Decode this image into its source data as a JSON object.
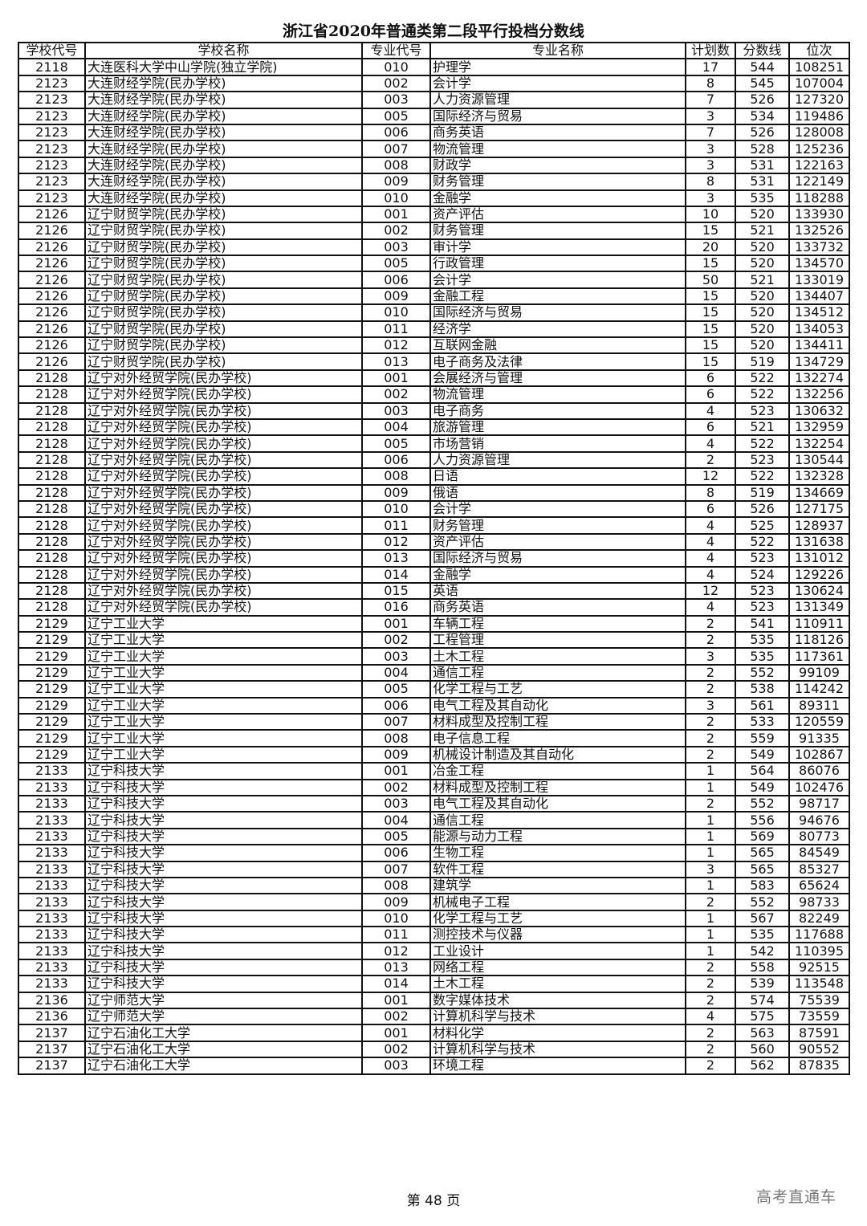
{
  "title": "浙江省2020年普通类第二段平行投档分数线",
  "headers": [
    "学校代号",
    "学校名称",
    "专业代号",
    "专业名称",
    "计划数",
    "分数线",
    "位次"
  ],
  "rows": [
    [
      "2118",
      "大连医科大学中山学院(独立学院)",
      "010",
      "护理学",
      "17",
      "544",
      "108251"
    ],
    [
      "2123",
      "大连财经学院(民办学校)",
      "002",
      "会计学",
      "8",
      "545",
      "107004"
    ],
    [
      "2123",
      "大连财经学院(民办学校)",
      "003",
      "人力资源管理",
      "7",
      "526",
      "127320"
    ],
    [
      "2123",
      "大连财经学院(民办学校)",
      "005",
      "国际经济与贸易",
      "3",
      "534",
      "119486"
    ],
    [
      "2123",
      "大连财经学院(民办学校)",
      "006",
      "商务英语",
      "7",
      "526",
      "128008"
    ],
    [
      "2123",
      "大连财经学院(民办学校)",
      "007",
      "物流管理",
      "3",
      "528",
      "125236"
    ],
    [
      "2123",
      "大连财经学院(民办学校)",
      "008",
      "财政学",
      "3",
      "531",
      "122163"
    ],
    [
      "2123",
      "大连财经学院(民办学校)",
      "009",
      "财务管理",
      "8",
      "531",
      "122149"
    ],
    [
      "2123",
      "大连财经学院(民办学校)",
      "010",
      "金融学",
      "3",
      "535",
      "118288"
    ],
    [
      "2126",
      "辽宁财贸学院(民办学校)",
      "001",
      "资产评估",
      "10",
      "520",
      "133930"
    ],
    [
      "2126",
      "辽宁财贸学院(民办学校)",
      "002",
      "财务管理",
      "15",
      "521",
      "132526"
    ],
    [
      "2126",
      "辽宁财贸学院(民办学校)",
      "003",
      "审计学",
      "20",
      "520",
      "133732"
    ],
    [
      "2126",
      "辽宁财贸学院(民办学校)",
      "005",
      "行政管理",
      "15",
      "520",
      "134570"
    ],
    [
      "2126",
      "辽宁财贸学院(民办学校)",
      "006",
      "会计学",
      "50",
      "521",
      "133019"
    ],
    [
      "2126",
      "辽宁财贸学院(民办学校)",
      "009",
      "金融工程",
      "15",
      "520",
      "134407"
    ],
    [
      "2126",
      "辽宁财贸学院(民办学校)",
      "010",
      "国际经济与贸易",
      "15",
      "520",
      "134512"
    ],
    [
      "2126",
      "辽宁财贸学院(民办学校)",
      "011",
      "经济学",
      "15",
      "520",
      "134053"
    ],
    [
      "2126",
      "辽宁财贸学院(民办学校)",
      "012",
      "互联网金融",
      "15",
      "520",
      "134411"
    ],
    [
      "2126",
      "辽宁财贸学院(民办学校)",
      "013",
      "电子商务及法律",
      "15",
      "519",
      "134729"
    ],
    [
      "2128",
      "辽宁对外经贸学院(民办学校)",
      "001",
      "会展经济与管理",
      "6",
      "522",
      "132274"
    ],
    [
      "2128",
      "辽宁对外经贸学院(民办学校)",
      "002",
      "物流管理",
      "6",
      "522",
      "132256"
    ],
    [
      "2128",
      "辽宁对外经贸学院(民办学校)",
      "003",
      "电子商务",
      "4",
      "523",
      "130632"
    ],
    [
      "2128",
      "辽宁对外经贸学院(民办学校)",
      "004",
      "旅游管理",
      "6",
      "521",
      "132959"
    ],
    [
      "2128",
      "辽宁对外经贸学院(民办学校)",
      "005",
      "市场营销",
      "4",
      "522",
      "132254"
    ],
    [
      "2128",
      "辽宁对外经贸学院(民办学校)",
      "006",
      "人力资源管理",
      "2",
      "523",
      "130544"
    ],
    [
      "2128",
      "辽宁对外经贸学院(民办学校)",
      "008",
      "日语",
      "12",
      "522",
      "132328"
    ],
    [
      "2128",
      "辽宁对外经贸学院(民办学校)",
      "009",
      "俄语",
      "8",
      "519",
      "134669"
    ],
    [
      "2128",
      "辽宁对外经贸学院(民办学校)",
      "010",
      "会计学",
      "6",
      "526",
      "127175"
    ],
    [
      "2128",
      "辽宁对外经贸学院(民办学校)",
      "011",
      "财务管理",
      "4",
      "525",
      "128937"
    ],
    [
      "2128",
      "辽宁对外经贸学院(民办学校)",
      "012",
      "资产评估",
      "4",
      "522",
      "131638"
    ],
    [
      "2128",
      "辽宁对外经贸学院(民办学校)",
      "013",
      "国际经济与贸易",
      "4",
      "523",
      "131012"
    ],
    [
      "2128",
      "辽宁对外经贸学院(民办学校)",
      "014",
      "金融学",
      "4",
      "524",
      "129226"
    ],
    [
      "2128",
      "辽宁对外经贸学院(民办学校)",
      "015",
      "英语",
      "12",
      "523",
      "130624"
    ],
    [
      "2128",
      "辽宁对外经贸学院(民办学校)",
      "016",
      "商务英语",
      "4",
      "523",
      "131349"
    ],
    [
      "2129",
      "辽宁工业大学",
      "001",
      "车辆工程",
      "2",
      "541",
      "110911"
    ],
    [
      "2129",
      "辽宁工业大学",
      "002",
      "工程管理",
      "2",
      "535",
      "118126"
    ],
    [
      "2129",
      "辽宁工业大学",
      "003",
      "土木工程",
      "3",
      "535",
      "117361"
    ],
    [
      "2129",
      "辽宁工业大学",
      "004",
      "通信工程",
      "2",
      "552",
      "99109"
    ],
    [
      "2129",
      "辽宁工业大学",
      "005",
      "化学工程与工艺",
      "2",
      "538",
      "114242"
    ],
    [
      "2129",
      "辽宁工业大学",
      "006",
      "电气工程及其自动化",
      "3",
      "561",
      "89311"
    ],
    [
      "2129",
      "辽宁工业大学",
      "007",
      "材料成型及控制工程",
      "2",
      "533",
      "120559"
    ],
    [
      "2129",
      "辽宁工业大学",
      "008",
      "电子信息工程",
      "2",
      "559",
      "91335"
    ],
    [
      "2129",
      "辽宁工业大学",
      "009",
      "机械设计制造及其自动化",
      "2",
      "549",
      "102867"
    ],
    [
      "2133",
      "辽宁科技大学",
      "001",
      "冶金工程",
      "1",
      "564",
      "86076"
    ],
    [
      "2133",
      "辽宁科技大学",
      "002",
      "材料成型及控制工程",
      "1",
      "549",
      "102476"
    ],
    [
      "2133",
      "辽宁科技大学",
      "003",
      "电气工程及其自动化",
      "2",
      "552",
      "98717"
    ],
    [
      "2133",
      "辽宁科技大学",
      "004",
      "通信工程",
      "1",
      "556",
      "94676"
    ],
    [
      "2133",
      "辽宁科技大学",
      "005",
      "能源与动力工程",
      "1",
      "569",
      "80773"
    ],
    [
      "2133",
      "辽宁科技大学",
      "006",
      "生物工程",
      "1",
      "565",
      "84549"
    ],
    [
      "2133",
      "辽宁科技大学",
      "007",
      "软件工程",
      "3",
      "565",
      "85327"
    ],
    [
      "2133",
      "辽宁科技大学",
      "008",
      "建筑学",
      "1",
      "583",
      "65624"
    ],
    [
      "2133",
      "辽宁科技大学",
      "009",
      "机械电子工程",
      "2",
      "552",
      "98733"
    ],
    [
      "2133",
      "辽宁科技大学",
      "010",
      "化学工程与工艺",
      "1",
      "567",
      "82249"
    ],
    [
      "2133",
      "辽宁科技大学",
      "011",
      "测控技术与仪器",
      "1",
      "535",
      "117688"
    ],
    [
      "2133",
      "辽宁科技大学",
      "012",
      "工业设计",
      "1",
      "542",
      "110395"
    ],
    [
      "2133",
      "辽宁科技大学",
      "013",
      "网络工程",
      "2",
      "558",
      "92515"
    ],
    [
      "2133",
      "辽宁科技大学",
      "014",
      "土木工程",
      "2",
      "539",
      "113548"
    ],
    [
      "2136",
      "辽宁师范大学",
      "001",
      "数字媒体技术",
      "2",
      "574",
      "75539"
    ],
    [
      "2136",
      "辽宁师范大学",
      "002",
      "计算机科学与技术",
      "4",
      "575",
      "73559"
    ],
    [
      "2137",
      "辽宁石油化工大学",
      "001",
      "材料化学",
      "2",
      "563",
      "87591"
    ],
    [
      "2137",
      "辽宁石油化工大学",
      "002",
      "计算机科学与技术",
      "2",
      "560",
      "90552"
    ],
    [
      "2137",
      "辽宁石油化工大学",
      "003",
      "环境工程",
      "2",
      "562",
      "87835"
    ]
  ],
  "footer": {
    "page": "第 48 页",
    "watermark": "高考直通车"
  }
}
